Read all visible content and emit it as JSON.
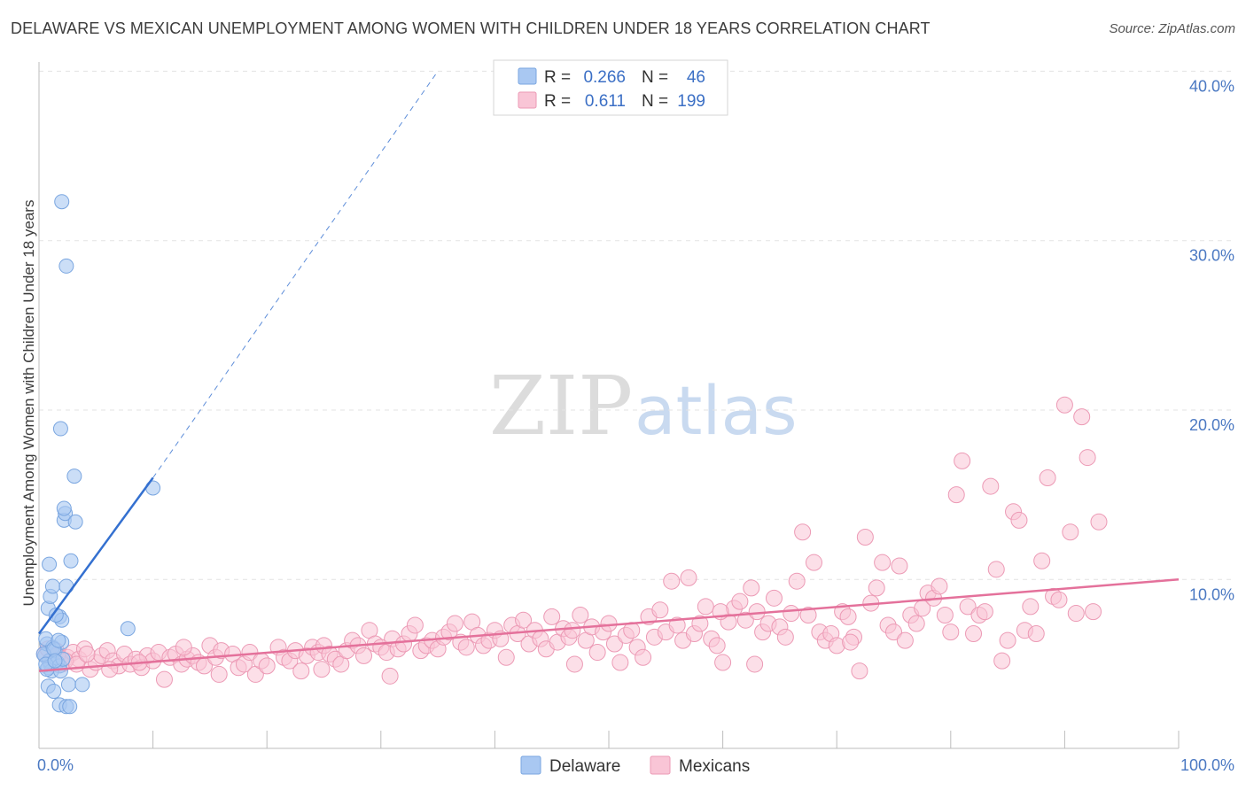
{
  "title": "DELAWARE VS MEXICAN UNEMPLOYMENT AMONG WOMEN WITH CHILDREN UNDER 18 YEARS CORRELATION CHART",
  "source": "Source: ZipAtlas.com",
  "watermark": {
    "zip": "ZIP",
    "atlas": "atlas"
  },
  "legend": {
    "r_label": "R =",
    "n_label": "N =",
    "rows": [
      {
        "r": "0.266",
        "n": "46",
        "color": "#a9c8f2",
        "stroke": "#7aa6e0"
      },
      {
        "r": "0.611",
        "n": "199",
        "color": "#f9c5d6",
        "stroke": "#ec9ab5"
      }
    ]
  },
  "bottom_legend": [
    {
      "label": "Delaware",
      "color": "#a9c8f2",
      "stroke": "#7aa6e0"
    },
    {
      "label": "Mexicans",
      "color": "#f9c5d6",
      "stroke": "#ec9ab5"
    }
  ],
  "chart_data": {
    "type": "scatter",
    "xlabel": "",
    "ylabel": "Unemployment Among Women with Children Under 18 years",
    "xlim": [
      0,
      100
    ],
    "ylim": [
      0,
      42
    ],
    "x_tick_labels": [
      "0.0%",
      "100.0%"
    ],
    "y_tick_labels": [
      "10.0%",
      "20.0%",
      "30.0%",
      "40.0%"
    ],
    "y_ticks": [
      10,
      20,
      30,
      40
    ],
    "grid": true,
    "colors": {
      "delaware_line": "#3470d0",
      "mexicans_line": "#e4719b",
      "axis_label": "#4a78c2"
    },
    "series": [
      {
        "name": "Delaware",
        "r": 0.266,
        "n": 46,
        "trend": {
          "x0": 0,
          "y0": 6.8,
          "x1": 10,
          "y1": 16.0,
          "dash_to_x": 35,
          "dash_to_y": 40
        },
        "points": [
          [
            0.5,
            5.5
          ],
          [
            0.7,
            6.2
          ],
          [
            0.8,
            4.8
          ],
          [
            1.0,
            5.0
          ],
          [
            1.2,
            6.0
          ],
          [
            0.6,
            6.5
          ],
          [
            0.9,
            5.2
          ],
          [
            1.4,
            5.8
          ],
          [
            1.6,
            5.1
          ],
          [
            1.8,
            4.9
          ],
          [
            2.0,
            6.3
          ],
          [
            0.4,
            5.6
          ],
          [
            1.1,
            4.6
          ],
          [
            1.3,
            5.9
          ],
          [
            0.8,
            8.3
          ],
          [
            1.0,
            9.0
          ],
          [
            1.8,
            7.8
          ],
          [
            2.0,
            7.6
          ],
          [
            1.2,
            9.6
          ],
          [
            0.9,
            10.9
          ],
          [
            1.5,
            7.9
          ],
          [
            1.7,
            6.4
          ],
          [
            1.9,
            4.6
          ],
          [
            2.1,
            5.3
          ],
          [
            0.7,
            4.7
          ],
          [
            0.6,
            5.0
          ],
          [
            1.4,
            5.2
          ],
          [
            2.4,
            9.6
          ],
          [
            2.8,
            11.1
          ],
          [
            2.2,
            13.5
          ],
          [
            2.3,
            13.9
          ],
          [
            2.2,
            14.2
          ],
          [
            3.2,
            13.4
          ],
          [
            3.1,
            16.1
          ],
          [
            1.9,
            18.9
          ],
          [
            2.4,
            28.5
          ],
          [
            2.0,
            32.3
          ],
          [
            10.0,
            15.4
          ],
          [
            7.8,
            7.1
          ],
          [
            0.8,
            3.7
          ],
          [
            1.3,
            3.4
          ],
          [
            2.6,
            3.8
          ],
          [
            3.8,
            3.8
          ],
          [
            1.8,
            2.6
          ],
          [
            2.4,
            2.5
          ],
          [
            2.7,
            2.5
          ]
        ]
      },
      {
        "name": "Mexicans",
        "r": 0.611,
        "n": 199,
        "trend": {
          "x0": 0,
          "y0": 4.6,
          "x1": 100,
          "y1": 10.0
        },
        "points": [
          [
            0.5,
            5.6
          ],
          [
            1.0,
            5.2
          ],
          [
            1.5,
            5.8
          ],
          [
            2.0,
            5.0
          ],
          [
            2.5,
            5.4
          ],
          [
            3.0,
            5.7
          ],
          [
            3.5,
            5.3
          ],
          [
            4.0,
            5.9
          ],
          [
            4.5,
            4.7
          ],
          [
            5.0,
            5.1
          ],
          [
            5.5,
            5.5
          ],
          [
            6.0,
            5.8
          ],
          [
            6.5,
            5.2
          ],
          [
            7.0,
            4.9
          ],
          [
            7.5,
            5.6
          ],
          [
            8.0,
            5.0
          ],
          [
            8.5,
            5.3
          ],
          [
            9.0,
            4.8
          ],
          [
            9.5,
            5.5
          ],
          [
            10.0,
            5.2
          ],
          [
            10.5,
            5.7
          ],
          [
            11.0,
            4.1
          ],
          [
            11.5,
            5.4
          ],
          [
            12.0,
            5.6
          ],
          [
            12.5,
            5.0
          ],
          [
            13.0,
            5.3
          ],
          [
            13.5,
            5.5
          ],
          [
            14.0,
            5.1
          ],
          [
            14.5,
            4.9
          ],
          [
            15.0,
            6.1
          ],
          [
            15.5,
            5.4
          ],
          [
            16.0,
            5.8
          ],
          [
            17.0,
            5.6
          ],
          [
            17.5,
            4.8
          ],
          [
            18.0,
            5.0
          ],
          [
            18.5,
            5.7
          ],
          [
            19.0,
            4.4
          ],
          [
            19.5,
            5.2
          ],
          [
            20.0,
            4.9
          ],
          [
            21.0,
            6.0
          ],
          [
            21.5,
            5.4
          ],
          [
            22.0,
            5.2
          ],
          [
            22.5,
            5.8
          ],
          [
            23.0,
            4.6
          ],
          [
            23.5,
            5.5
          ],
          [
            24.0,
            6.0
          ],
          [
            24.5,
            5.7
          ],
          [
            25.0,
            6.1
          ],
          [
            25.5,
            5.6
          ],
          [
            26.0,
            5.3
          ],
          [
            26.5,
            5.0
          ],
          [
            27.0,
            5.8
          ],
          [
            27.5,
            6.4
          ],
          [
            28.0,
            6.1
          ],
          [
            28.5,
            5.5
          ],
          [
            29.0,
            7.0
          ],
          [
            29.5,
            6.2
          ],
          [
            30.0,
            6.0
          ],
          [
            30.5,
            5.7
          ],
          [
            31.0,
            6.5
          ],
          [
            31.5,
            5.9
          ],
          [
            32.0,
            6.2
          ],
          [
            32.5,
            6.8
          ],
          [
            33.0,
            7.3
          ],
          [
            33.5,
            5.8
          ],
          [
            34.0,
            6.1
          ],
          [
            34.5,
            6.4
          ],
          [
            35.0,
            5.9
          ],
          [
            35.5,
            6.6
          ],
          [
            36.0,
            6.9
          ],
          [
            36.5,
            7.4
          ],
          [
            37.0,
            6.3
          ],
          [
            37.5,
            6.0
          ],
          [
            38.0,
            7.5
          ],
          [
            38.5,
            6.7
          ],
          [
            39.0,
            6.1
          ],
          [
            39.5,
            6.4
          ],
          [
            40.0,
            7.0
          ],
          [
            40.5,
            6.5
          ],
          [
            41.0,
            5.4
          ],
          [
            41.5,
            7.3
          ],
          [
            42.0,
            6.8
          ],
          [
            42.5,
            7.6
          ],
          [
            43.0,
            6.2
          ],
          [
            43.5,
            7.0
          ],
          [
            44.0,
            6.5
          ],
          [
            44.5,
            5.9
          ],
          [
            45.0,
            7.8
          ],
          [
            45.5,
            6.3
          ],
          [
            46.0,
            7.1
          ],
          [
            46.5,
            6.6
          ],
          [
            47.0,
            5.0
          ],
          [
            47.5,
            7.9
          ],
          [
            48.0,
            6.4
          ],
          [
            48.5,
            7.2
          ],
          [
            49.0,
            5.7
          ],
          [
            49.5,
            6.9
          ],
          [
            50.0,
            7.4
          ],
          [
            50.5,
            6.2
          ],
          [
            51.0,
            5.1
          ],
          [
            51.5,
            6.7
          ],
          [
            52.0,
            7.0
          ],
          [
            52.5,
            6.0
          ],
          [
            53.0,
            5.4
          ],
          [
            53.5,
            7.8
          ],
          [
            54.0,
            6.6
          ],
          [
            54.5,
            8.2
          ],
          [
            55.0,
            6.9
          ],
          [
            55.5,
            9.9
          ],
          [
            56.0,
            7.3
          ],
          [
            56.5,
            6.4
          ],
          [
            57.0,
            10.1
          ],
          [
            57.5,
            6.8
          ],
          [
            58.0,
            7.4
          ],
          [
            58.5,
            8.4
          ],
          [
            59.0,
            6.5
          ],
          [
            59.5,
            6.1
          ],
          [
            60.0,
            5.1
          ],
          [
            60.5,
            7.5
          ],
          [
            61.0,
            8.3
          ],
          [
            61.5,
            8.7
          ],
          [
            62.0,
            7.6
          ],
          [
            62.5,
            9.5
          ],
          [
            63.0,
            8.1
          ],
          [
            63.5,
            6.9
          ],
          [
            64.0,
            7.4
          ],
          [
            64.5,
            8.9
          ],
          [
            65.0,
            7.2
          ],
          [
            65.5,
            6.6
          ],
          [
            66.0,
            8.0
          ],
          [
            66.5,
            9.9
          ],
          [
            67.0,
            12.8
          ],
          [
            67.5,
            7.9
          ],
          [
            68.0,
            11.0
          ],
          [
            68.5,
            6.9
          ],
          [
            69.0,
            6.4
          ],
          [
            69.5,
            6.8
          ],
          [
            70.0,
            6.1
          ],
          [
            70.5,
            8.1
          ],
          [
            71.0,
            7.8
          ],
          [
            71.5,
            6.6
          ],
          [
            72.0,
            4.6
          ],
          [
            72.5,
            12.5
          ],
          [
            73.0,
            8.6
          ],
          [
            73.5,
            9.5
          ],
          [
            74.0,
            11.0
          ],
          [
            74.5,
            7.3
          ],
          [
            75.0,
            6.9
          ],
          [
            75.5,
            10.8
          ],
          [
            76.0,
            6.4
          ],
          [
            76.5,
            7.9
          ],
          [
            77.0,
            7.4
          ],
          [
            77.5,
            8.3
          ],
          [
            78.0,
            9.2
          ],
          [
            78.5,
            8.9
          ],
          [
            79.0,
            9.6
          ],
          [
            79.5,
            7.9
          ],
          [
            80.0,
            6.9
          ],
          [
            80.5,
            15.0
          ],
          [
            81.0,
            17.0
          ],
          [
            81.5,
            8.4
          ],
          [
            82.0,
            6.8
          ],
          [
            82.5,
            7.9
          ],
          [
            83.0,
            8.1
          ],
          [
            83.5,
            15.5
          ],
          [
            84.0,
            10.6
          ],
          [
            84.5,
            5.2
          ],
          [
            85.0,
            6.4
          ],
          [
            85.5,
            14.0
          ],
          [
            86.0,
            13.5
          ],
          [
            86.5,
            7.0
          ],
          [
            87.0,
            8.4
          ],
          [
            87.5,
            6.8
          ],
          [
            88.0,
            11.1
          ],
          [
            88.5,
            16.0
          ],
          [
            89.0,
            9.0
          ],
          [
            89.5,
            8.8
          ],
          [
            90.0,
            20.3
          ],
          [
            90.5,
            12.8
          ],
          [
            91.0,
            8.0
          ],
          [
            91.5,
            19.6
          ],
          [
            92.0,
            17.2
          ],
          [
            92.5,
            8.1
          ],
          [
            93.0,
            13.4
          ],
          [
            0.8,
            5.9
          ],
          [
            1.6,
            5.5
          ],
          [
            2.3,
            5.2
          ],
          [
            3.3,
            5.0
          ],
          [
            4.2,
            5.6
          ],
          [
            6.2,
            4.7
          ],
          [
            8.8,
            5.1
          ],
          [
            12.7,
            6.0
          ],
          [
            15.8,
            4.4
          ],
          [
            24.8,
            4.7
          ],
          [
            46.8,
            7.0
          ],
          [
            59.8,
            8.1
          ],
          [
            62.8,
            5.0
          ],
          [
            71.2,
            6.3
          ],
          [
            30.8,
            4.3
          ]
        ]
      }
    ]
  }
}
